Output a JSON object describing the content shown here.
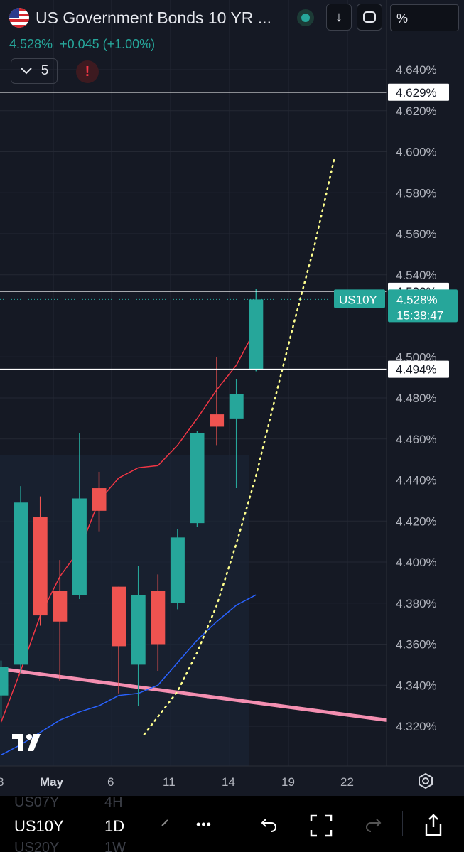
{
  "header": {
    "title": "US Government Bonds 10 YR ...",
    "price": "4.528%",
    "change": "+0.045 (+1.00%)",
    "indicator_count": "5",
    "warning_symbol": "!",
    "download_icon": "↓",
    "scale_label": "%"
  },
  "chart_data": {
    "type": "candlestick",
    "symbol": "US10Y",
    "x_ticks": [
      "May",
      "6",
      "11",
      "14",
      "19",
      "22"
    ],
    "y_ticks": [
      "4.640%",
      "4.620%",
      "4.600%",
      "4.580%",
      "4.560%",
      "4.540%",
      "4.520%",
      "4.500%",
      "4.480%",
      "4.460%",
      "4.440%",
      "4.420%",
      "4.400%",
      "4.380%",
      "4.360%",
      "4.340%",
      "4.320%"
    ],
    "ylim": [
      4.305,
      4.655
    ],
    "candles": [
      {
        "o": 4.335,
        "h": 4.352,
        "l": 4.324,
        "c": 4.349
      },
      {
        "o": 4.35,
        "h": 4.437,
        "l": 4.346,
        "c": 4.429
      },
      {
        "o": 4.422,
        "h": 4.432,
        "l": 4.369,
        "c": 4.374
      },
      {
        "o": 4.386,
        "h": 4.401,
        "l": 4.342,
        "c": 4.371
      },
      {
        "o": 4.384,
        "h": 4.463,
        "l": 4.382,
        "c": 4.431
      },
      {
        "o": 4.436,
        "h": 4.444,
        "l": 4.415,
        "c": 4.425
      },
      {
        "o": 4.388,
        "h": 4.388,
        "l": 4.336,
        "c": 4.359
      },
      {
        "o": 4.35,
        "h": 4.398,
        "l": 4.33,
        "c": 4.384
      },
      {
        "o": 4.386,
        "h": 4.394,
        "l": 4.347,
        "c": 4.36
      },
      {
        "o": 4.38,
        "h": 4.416,
        "l": 4.377,
        "c": 4.412
      },
      {
        "o": 4.419,
        "h": 4.464,
        "l": 4.417,
        "c": 4.463
      },
      {
        "o": 4.472,
        "h": 4.5,
        "l": 4.457,
        "c": 4.466
      },
      {
        "o": 4.47,
        "h": 4.489,
        "l": 4.436,
        "c": 4.482
      },
      {
        "o": 4.494,
        "h": 4.533,
        "l": 4.493,
        "c": 4.528
      }
    ],
    "ma_red": [
      4.322,
      4.347,
      4.374,
      4.393,
      4.406,
      4.43,
      4.441,
      4.446,
      4.447,
      4.457,
      4.47,
      4.484,
      4.496,
      4.514
    ],
    "ma_blue": [
      4.306,
      4.311,
      4.317,
      4.323,
      4.327,
      4.33,
      4.335,
      4.336,
      4.34,
      4.351,
      4.362,
      4.371,
      4.379,
      4.384
    ],
    "horizontal_levels": [
      {
        "label": "4.629%",
        "value": 4.629
      },
      {
        "label": "4.532%",
        "value": 4.532
      },
      {
        "label": "4.494%",
        "value": 4.494
      }
    ],
    "trendline_start": 4.348,
    "trendline_end": 4.323,
    "dotted_curve": [
      [
        7.3,
        4.316
      ],
      [
        9.0,
        4.337
      ],
      [
        10.0,
        4.356
      ],
      [
        11.0,
        4.379
      ],
      [
        12.0,
        4.409
      ],
      [
        13.0,
        4.442
      ],
      [
        14.0,
        4.481
      ],
      [
        15.0,
        4.519
      ],
      [
        16.0,
        4.555
      ],
      [
        17.0,
        4.597
      ]
    ],
    "current_price_label": "4.528%",
    "countdown": "15:38:47",
    "colors": {
      "up": "#26a69a",
      "down": "#ef5350",
      "ma_red": "#f23645",
      "ma_blue": "#2962ff",
      "trendline": "#f48fb1",
      "dotted": "#ffff8d",
      "background": "#151924",
      "grid": "#242833"
    }
  },
  "bottom_bar": {
    "symbol": "US10Y",
    "interval": "1D",
    "ghost_symbol_above": "US07Y",
    "ghost_interval_above": "4H",
    "ghost_symbol_below": "US20Y",
    "ghost_interval_below": "1W",
    "more_icon": "•••"
  }
}
